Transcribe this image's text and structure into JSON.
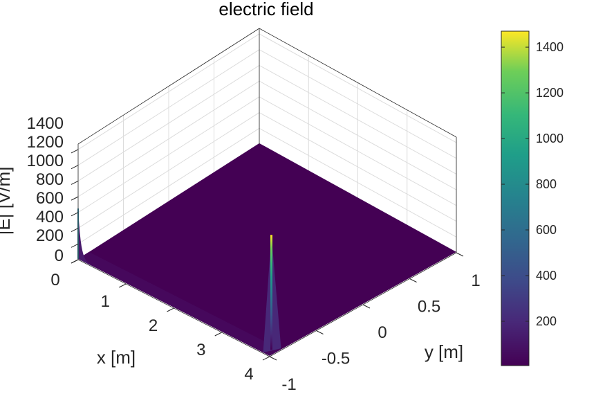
{
  "chart_data": {
    "type": "surface",
    "title": "electric field",
    "xlabel": "x  [m]",
    "ylabel": "y  [m]",
    "zlabel": "|E|  [V/m]",
    "xlim": [
      0,
      4
    ],
    "ylim": [
      -1,
      1
    ],
    "zlim": [
      0,
      1470
    ],
    "x_ticks": [
      "0",
      "1",
      "2",
      "3",
      "4"
    ],
    "y_ticks": [
      "-1",
      "-0.5",
      "0",
      "0.5",
      "1"
    ],
    "z_ticks": [
      "0",
      "200",
      "400",
      "600",
      "800",
      "1000",
      "1200",
      "1400"
    ],
    "colorbar": {
      "colormap": "viridis",
      "clim": [
        6,
        1470
      ],
      "ticks": [
        "200",
        "400",
        "600",
        "800",
        "1000",
        "1200",
        "1400"
      ]
    },
    "grid": true,
    "features": [
      {
        "description": "sharp peak",
        "x": 3.9,
        "y": -0.93,
        "z": 1470
      },
      {
        "description": "edge rise",
        "x": 0,
        "y": -1,
        "z": 650
      }
    ],
    "baseline_z": 10
  }
}
